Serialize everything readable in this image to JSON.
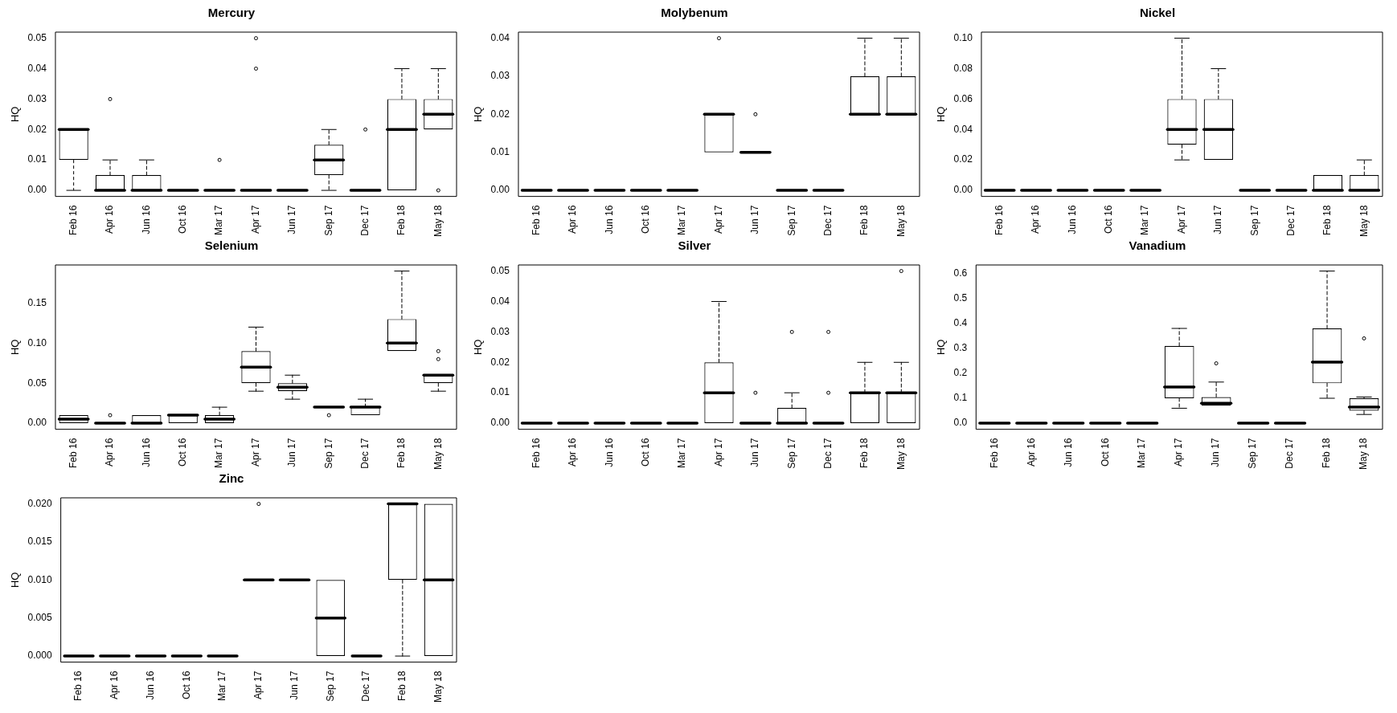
{
  "chart_data": [
    {
      "type": "box",
      "title": "Mercury",
      "ylabel": "HQ",
      "categories": [
        "Feb 16",
        "Apr 16",
        "Jun 16",
        "Oct 16",
        "Mar 17",
        "Apr 17",
        "Jun 17",
        "Sep 17",
        "Dec 17",
        "Feb 18",
        "May 18"
      ],
      "ylim": [
        -0.002,
        0.052
      ],
      "yticks": [
        {
          "value": 0,
          "label": "0.00"
        },
        {
          "value": 0.01,
          "label": "0.01"
        },
        {
          "value": 0.02,
          "label": "0.02"
        },
        {
          "value": 0.03,
          "label": "0.03"
        },
        {
          "value": 0.04,
          "label": "0.04"
        },
        {
          "value": 0.05,
          "label": "0.05"
        }
      ],
      "boxes": [
        {
          "low": 0,
          "q1": 0.01,
          "median": 0.02,
          "q3": 0.02,
          "high": 0.02
        },
        {
          "low": 0,
          "q1": 0,
          "median": 0,
          "q3": 0.005,
          "high": 0.01,
          "outliers": [
            0.03
          ]
        },
        {
          "low": 0,
          "q1": 0,
          "median": 0,
          "q3": 0.005,
          "high": 0.01
        },
        {
          "low": 0,
          "q1": 0,
          "median": 0,
          "q3": 0,
          "high": 0
        },
        {
          "low": 0,
          "q1": 0,
          "median": 0,
          "q3": 0,
          "high": 0,
          "outliers": [
            0.01
          ]
        },
        {
          "low": 0,
          "q1": 0,
          "median": 0,
          "q3": 0,
          "high": 0,
          "outliers": [
            0.04,
            0.05
          ]
        },
        {
          "low": 0,
          "q1": 0,
          "median": 0,
          "q3": 0,
          "high": 0
        },
        {
          "low": 0,
          "q1": 0.005,
          "median": 0.01,
          "q3": 0.015,
          "high": 0.02
        },
        {
          "low": 0,
          "q1": 0,
          "median": 0,
          "q3": 0,
          "high": 0,
          "outliers": [
            0.02
          ]
        },
        {
          "low": 0,
          "q1": 0,
          "median": 0.02,
          "q3": 0.03,
          "high": 0.04
        },
        {
          "low": 0.02,
          "q1": 0.02,
          "median": 0.025,
          "q3": 0.03,
          "high": 0.04,
          "outliers": [
            0
          ]
        }
      ]
    },
    {
      "type": "box",
      "title": "Molybenum",
      "ylabel": "HQ",
      "categories": [
        "Feb 16",
        "Apr 16",
        "Jun 16",
        "Oct 16",
        "Mar 17",
        "Apr 17",
        "Jun 17",
        "Sep 17",
        "Dec 17",
        "Feb 18",
        "May 18"
      ],
      "ylim": [
        -0.0016,
        0.0416
      ],
      "yticks": [
        {
          "value": 0,
          "label": "0.00"
        },
        {
          "value": 0.01,
          "label": "0.01"
        },
        {
          "value": 0.02,
          "label": "0.02"
        },
        {
          "value": 0.03,
          "label": "0.03"
        },
        {
          "value": 0.04,
          "label": "0.04"
        }
      ],
      "boxes": [
        {
          "low": 0,
          "q1": 0,
          "median": 0,
          "q3": 0,
          "high": 0
        },
        {
          "low": 0,
          "q1": 0,
          "median": 0,
          "q3": 0,
          "high": 0
        },
        {
          "low": 0,
          "q1": 0,
          "median": 0,
          "q3": 0,
          "high": 0
        },
        {
          "low": 0,
          "q1": 0,
          "median": 0,
          "q3": 0,
          "high": 0
        },
        {
          "low": 0,
          "q1": 0,
          "median": 0,
          "q3": 0,
          "high": 0
        },
        {
          "low": 0.01,
          "q1": 0.01,
          "median": 0.02,
          "q3": 0.02,
          "high": 0.02,
          "outliers": [
            0.04
          ]
        },
        {
          "low": 0.01,
          "q1": 0.01,
          "median": 0.01,
          "q3": 0.01,
          "high": 0.01,
          "outliers": [
            0.02
          ]
        },
        {
          "low": 0,
          "q1": 0,
          "median": 0,
          "q3": 0,
          "high": 0
        },
        {
          "low": 0,
          "q1": 0,
          "median": 0,
          "q3": 0,
          "high": 0
        },
        {
          "low": 0.02,
          "q1": 0.02,
          "median": 0.02,
          "q3": 0.03,
          "high": 0.04
        },
        {
          "low": 0.02,
          "q1": 0.02,
          "median": 0.02,
          "q3": 0.03,
          "high": 0.04
        }
      ]
    },
    {
      "type": "box",
      "title": "Nickel",
      "ylabel": "HQ",
      "categories": [
        "Feb 16",
        "Apr 16",
        "Jun 16",
        "Oct 16",
        "Mar 17",
        "Apr 17",
        "Jun 17",
        "Sep 17",
        "Dec 17",
        "Feb 18",
        "May 18"
      ],
      "ylim": [
        -0.004,
        0.104
      ],
      "yticks": [
        {
          "value": 0,
          "label": "0.00"
        },
        {
          "value": 0.02,
          "label": "0.02"
        },
        {
          "value": 0.04,
          "label": "0.04"
        },
        {
          "value": 0.06,
          "label": "0.06"
        },
        {
          "value": 0.08,
          "label": "0.08"
        },
        {
          "value": 0.1,
          "label": "0.10"
        }
      ],
      "boxes": [
        {
          "low": 0,
          "q1": 0,
          "median": 0,
          "q3": 0,
          "high": 0
        },
        {
          "low": 0,
          "q1": 0,
          "median": 0,
          "q3": 0,
          "high": 0
        },
        {
          "low": 0,
          "q1": 0,
          "median": 0,
          "q3": 0,
          "high": 0
        },
        {
          "low": 0,
          "q1": 0,
          "median": 0,
          "q3": 0,
          "high": 0
        },
        {
          "low": 0,
          "q1": 0,
          "median": 0,
          "q3": 0,
          "high": 0
        },
        {
          "low": 0.02,
          "q1": 0.03,
          "median": 0.04,
          "q3": 0.06,
          "high": 0.1
        },
        {
          "low": 0.02,
          "q1": 0.02,
          "median": 0.04,
          "q3": 0.06,
          "high": 0.08
        },
        {
          "low": 0,
          "q1": 0,
          "median": 0,
          "q3": 0,
          "high": 0
        },
        {
          "low": 0,
          "q1": 0,
          "median": 0,
          "q3": 0,
          "high": 0
        },
        {
          "low": 0,
          "q1": 0,
          "median": 0,
          "q3": 0.01,
          "high": 0.01
        },
        {
          "low": 0,
          "q1": 0,
          "median": 0,
          "q3": 0.01,
          "high": 0.02
        }
      ]
    },
    {
      "type": "box",
      "title": "Selenium",
      "ylabel": "HQ",
      "categories": [
        "Feb 16",
        "Apr 16",
        "Jun 16",
        "Oct 16",
        "Mar 17",
        "Apr 17",
        "Jun 17",
        "Sep 17",
        "Dec 17",
        "Feb 18",
        "May 18"
      ],
      "ylim": [
        -0.0076,
        0.1976
      ],
      "yticks": [
        {
          "value": 0,
          "label": "0.00"
        },
        {
          "value": 0.05,
          "label": "0.05"
        },
        {
          "value": 0.1,
          "label": "0.10"
        },
        {
          "value": 0.15,
          "label": "0.15"
        }
      ],
      "boxes": [
        {
          "low": 0,
          "q1": 0,
          "median": 0.005,
          "q3": 0.01,
          "high": 0.01
        },
        {
          "low": 0,
          "q1": 0,
          "median": 0,
          "q3": 0,
          "high": 0,
          "outliers": [
            0.01
          ]
        },
        {
          "low": 0,
          "q1": 0,
          "median": 0,
          "q3": 0.01,
          "high": 0.01
        },
        {
          "low": 0,
          "q1": 0,
          "median": 0.01,
          "q3": 0.01,
          "high": 0.01
        },
        {
          "low": 0,
          "q1": 0,
          "median": 0.005,
          "q3": 0.01,
          "high": 0.02
        },
        {
          "low": 0.04,
          "q1": 0.05,
          "median": 0.07,
          "q3": 0.09,
          "high": 0.12
        },
        {
          "low": 0.03,
          "q1": 0.04,
          "median": 0.045,
          "q3": 0.05,
          "high": 0.06
        },
        {
          "low": 0.02,
          "q1": 0.02,
          "median": 0.02,
          "q3": 0.02,
          "high": 0.02,
          "outliers": [
            0.01
          ]
        },
        {
          "low": 0.01,
          "q1": 0.01,
          "median": 0.02,
          "q3": 0.02,
          "high": 0.03
        },
        {
          "low": 0.09,
          "q1": 0.09,
          "median": 0.1,
          "q3": 0.13,
          "high": 0.19
        },
        {
          "low": 0.04,
          "q1": 0.05,
          "median": 0.06,
          "q3": 0.06,
          "high": 0.06,
          "outliers": [
            0.08,
            0.09
          ]
        }
      ]
    },
    {
      "type": "box",
      "title": "Silver",
      "ylabel": "HQ",
      "categories": [
        "Feb 16",
        "Apr 16",
        "Jun 16",
        "Oct 16",
        "Mar 17",
        "Apr 17",
        "Jun 17",
        "Sep 17",
        "Dec 17",
        "Feb 18",
        "May 18"
      ],
      "ylim": [
        -0.002,
        0.052
      ],
      "yticks": [
        {
          "value": 0,
          "label": "0.00"
        },
        {
          "value": 0.01,
          "label": "0.01"
        },
        {
          "value": 0.02,
          "label": "0.02"
        },
        {
          "value": 0.03,
          "label": "0.03"
        },
        {
          "value": 0.04,
          "label": "0.04"
        },
        {
          "value": 0.05,
          "label": "0.05"
        }
      ],
      "boxes": [
        {
          "low": 0,
          "q1": 0,
          "median": 0,
          "q3": 0,
          "high": 0
        },
        {
          "low": 0,
          "q1": 0,
          "median": 0,
          "q3": 0,
          "high": 0
        },
        {
          "low": 0,
          "q1": 0,
          "median": 0,
          "q3": 0,
          "high": 0
        },
        {
          "low": 0,
          "q1": 0,
          "median": 0,
          "q3": 0,
          "high": 0
        },
        {
          "low": 0,
          "q1": 0,
          "median": 0,
          "q3": 0,
          "high": 0
        },
        {
          "low": 0,
          "q1": 0,
          "median": 0.01,
          "q3": 0.02,
          "high": 0.04
        },
        {
          "low": 0,
          "q1": 0,
          "median": 0,
          "q3": 0,
          "high": 0,
          "outliers": [
            0.01
          ]
        },
        {
          "low": 0,
          "q1": 0,
          "median": 0,
          "q3": 0.005,
          "high": 0.01,
          "outliers": [
            0.03
          ]
        },
        {
          "low": 0,
          "q1": 0,
          "median": 0,
          "q3": 0,
          "high": 0,
          "outliers": [
            0.01,
            0.03
          ]
        },
        {
          "low": 0,
          "q1": 0,
          "median": 0.01,
          "q3": 0.01,
          "high": 0.02
        },
        {
          "low": 0,
          "q1": 0,
          "median": 0.01,
          "q3": 0.01,
          "high": 0.02,
          "outliers": [
            0.05
          ]
        }
      ]
    },
    {
      "type": "box",
      "title": "Vanadium",
      "ylabel": "HQ",
      "categories": [
        "Feb 16",
        "Apr 16",
        "Jun 16",
        "Oct 16",
        "Mar 17",
        "Apr 17",
        "Jun 17",
        "Sep 17",
        "Dec 17",
        "Feb 18",
        "May 18"
      ],
      "ylim": [
        -0.0244,
        0.6344
      ],
      "yticks": [
        {
          "value": 0,
          "label": "0.0"
        },
        {
          "value": 0.1,
          "label": "0.1"
        },
        {
          "value": 0.2,
          "label": "0.2"
        },
        {
          "value": 0.3,
          "label": "0.3"
        },
        {
          "value": 0.4,
          "label": "0.4"
        },
        {
          "value": 0.5,
          "label": "0.5"
        },
        {
          "value": 0.6,
          "label": "0.6"
        }
      ],
      "boxes": [
        {
          "low": 0,
          "q1": 0,
          "median": 0,
          "q3": 0,
          "high": 0
        },
        {
          "low": 0,
          "q1": 0,
          "median": 0,
          "q3": 0,
          "high": 0
        },
        {
          "low": 0,
          "q1": 0,
          "median": 0,
          "q3": 0,
          "high": 0
        },
        {
          "low": 0,
          "q1": 0,
          "median": 0,
          "q3": 0,
          "high": 0
        },
        {
          "low": 0,
          "q1": 0,
          "median": 0,
          "q3": 0,
          "high": 0
        },
        {
          "low": 0.06,
          "q1": 0.1,
          "median": 0.145,
          "q3": 0.31,
          "high": 0.38
        },
        {
          "low": 0.07,
          "q1": 0.07,
          "median": 0.08,
          "q3": 0.105,
          "high": 0.165,
          "outliers": [
            0.24
          ]
        },
        {
          "low": 0,
          "q1": 0,
          "median": 0,
          "q3": 0,
          "high": 0
        },
        {
          "low": 0,
          "q1": 0,
          "median": 0,
          "q3": 0,
          "high": 0
        },
        {
          "low": 0.1,
          "q1": 0.16,
          "median": 0.245,
          "q3": 0.38,
          "high": 0.61
        },
        {
          "low": 0.035,
          "q1": 0.05,
          "median": 0.065,
          "q3": 0.1,
          "high": 0.105,
          "outliers": [
            0.34
          ]
        }
      ]
    },
    {
      "type": "box",
      "title": "Zinc",
      "ylabel": "HQ",
      "categories": [
        "Feb 16",
        "Apr 16",
        "Jun 16",
        "Oct 16",
        "Mar 17",
        "Apr 17",
        "Jun 17",
        "Sep 17",
        "Dec 17",
        "Feb 18",
        "May 18"
      ],
      "ylim": [
        -0.0008,
        0.0208
      ],
      "yticks": [
        {
          "value": 0,
          "label": "0.000"
        },
        {
          "value": 0.005,
          "label": "0.005"
        },
        {
          "value": 0.01,
          "label": "0.010"
        },
        {
          "value": 0.015,
          "label": "0.015"
        },
        {
          "value": 0.02,
          "label": "0.020"
        }
      ],
      "boxes": [
        {
          "low": 0,
          "q1": 0,
          "median": 0,
          "q3": 0,
          "high": 0
        },
        {
          "low": 0,
          "q1": 0,
          "median": 0,
          "q3": 0,
          "high": 0
        },
        {
          "low": 0,
          "q1": 0,
          "median": 0,
          "q3": 0,
          "high": 0
        },
        {
          "low": 0,
          "q1": 0,
          "median": 0,
          "q3": 0,
          "high": 0
        },
        {
          "low": 0,
          "q1": 0,
          "median": 0,
          "q3": 0,
          "high": 0
        },
        {
          "low": 0.01,
          "q1": 0.01,
          "median": 0.01,
          "q3": 0.01,
          "high": 0.01,
          "outliers": [
            0.02
          ]
        },
        {
          "low": 0.01,
          "q1": 0.01,
          "median": 0.01,
          "q3": 0.01,
          "high": 0.01
        },
        {
          "low": 0,
          "q1": 0,
          "median": 0.005,
          "q3": 0.01,
          "high": 0.01
        },
        {
          "low": 0,
          "q1": 0,
          "median": 0,
          "q3": 0,
          "high": 0
        },
        {
          "low": 0,
          "q1": 0.01,
          "median": 0.02,
          "q3": 0.02,
          "high": 0.02
        },
        {
          "low": 0,
          "q1": 0,
          "median": 0.01,
          "q3": 0.02,
          "high": 0.02
        }
      ]
    }
  ]
}
